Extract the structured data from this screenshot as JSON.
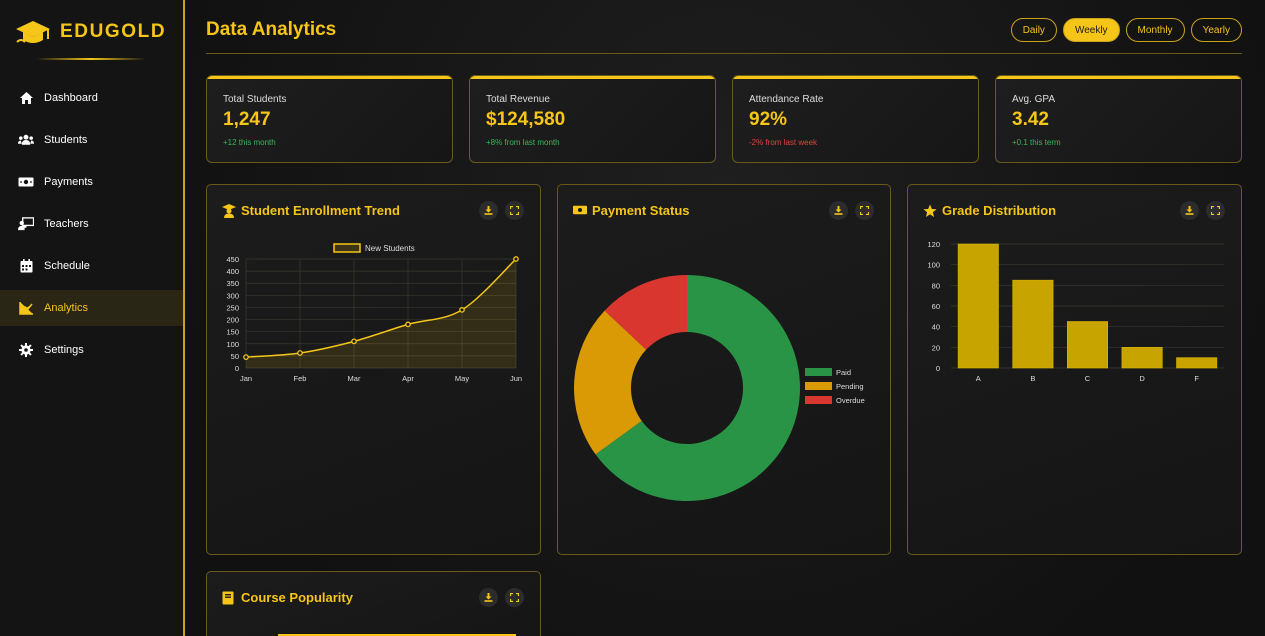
{
  "brand": {
    "name": "EDUGOLD"
  },
  "sidebar": {
    "items": [
      {
        "label": "Dashboard",
        "icon": "home-icon"
      },
      {
        "label": "Students",
        "icon": "users-icon"
      },
      {
        "label": "Payments",
        "icon": "money-icon"
      },
      {
        "label": "Teachers",
        "icon": "teacher-icon"
      },
      {
        "label": "Schedule",
        "icon": "calendar-icon"
      },
      {
        "label": "Analytics",
        "icon": "chart-line-icon",
        "active": true
      },
      {
        "label": "Settings",
        "icon": "gear-icon"
      }
    ]
  },
  "header": {
    "title_part1": "Data",
    "title_part2": " Analytics",
    "periods": [
      "Daily",
      "Weekly",
      "Monthly",
      "Yearly"
    ],
    "active_period": "Weekly"
  },
  "stats": [
    {
      "label": "Total Students",
      "value": "1,247",
      "change": "+12 this month",
      "trend": "up"
    },
    {
      "label": "Total Revenue",
      "value": "$124,580",
      "change": "+8% from last month",
      "trend": "up"
    },
    {
      "label": "Attendance Rate",
      "value": "92%",
      "change": "-2% from last week",
      "trend": "down"
    },
    {
      "label": "Avg. GPA",
      "value": "3.42",
      "change": "+0.1 this term",
      "trend": "up"
    }
  ],
  "panels": {
    "enrollment": {
      "title": "Student Enrollment Trend",
      "icon": "graduate-icon"
    },
    "payment": {
      "title": "Payment Status",
      "icon": "money-icon"
    },
    "grades": {
      "title": "Grade Distribution",
      "icon": "star-icon"
    },
    "courses": {
      "title": "Course Popularity",
      "icon": "book-icon"
    }
  },
  "colors": {
    "accent": "#f5c518",
    "paid": "#2a9446",
    "pending": "#d99a05",
    "overdue": "#d93630",
    "bar": "#c8a400"
  },
  "chart_data": [
    {
      "type": "line",
      "categories": [
        "Jan",
        "Feb",
        "Mar",
        "Apr",
        "May",
        "Jun"
      ],
      "series": [
        {
          "name": "New Students",
          "values": [
            45,
            62,
            110,
            180,
            240,
            450
          ]
        }
      ],
      "yticks": [
        0,
        50,
        100,
        150,
        200,
        250,
        300,
        350,
        400,
        450
      ],
      "ylim": [
        0,
        450
      ],
      "grid": true,
      "legend": "top"
    },
    {
      "type": "pie",
      "donut": true,
      "labels": [
        "Paid",
        "Pending",
        "Overdue"
      ],
      "values": [
        65,
        22,
        13
      ],
      "legend": "right"
    },
    {
      "type": "bar",
      "categories": [
        "A",
        "B",
        "C",
        "D",
        "F"
      ],
      "values": [
        120,
        85,
        45,
        20,
        10
      ],
      "yticks": [
        0,
        20,
        40,
        60,
        80,
        100,
        120
      ],
      "ylim": [
        0,
        120
      ],
      "grid": true
    }
  ]
}
